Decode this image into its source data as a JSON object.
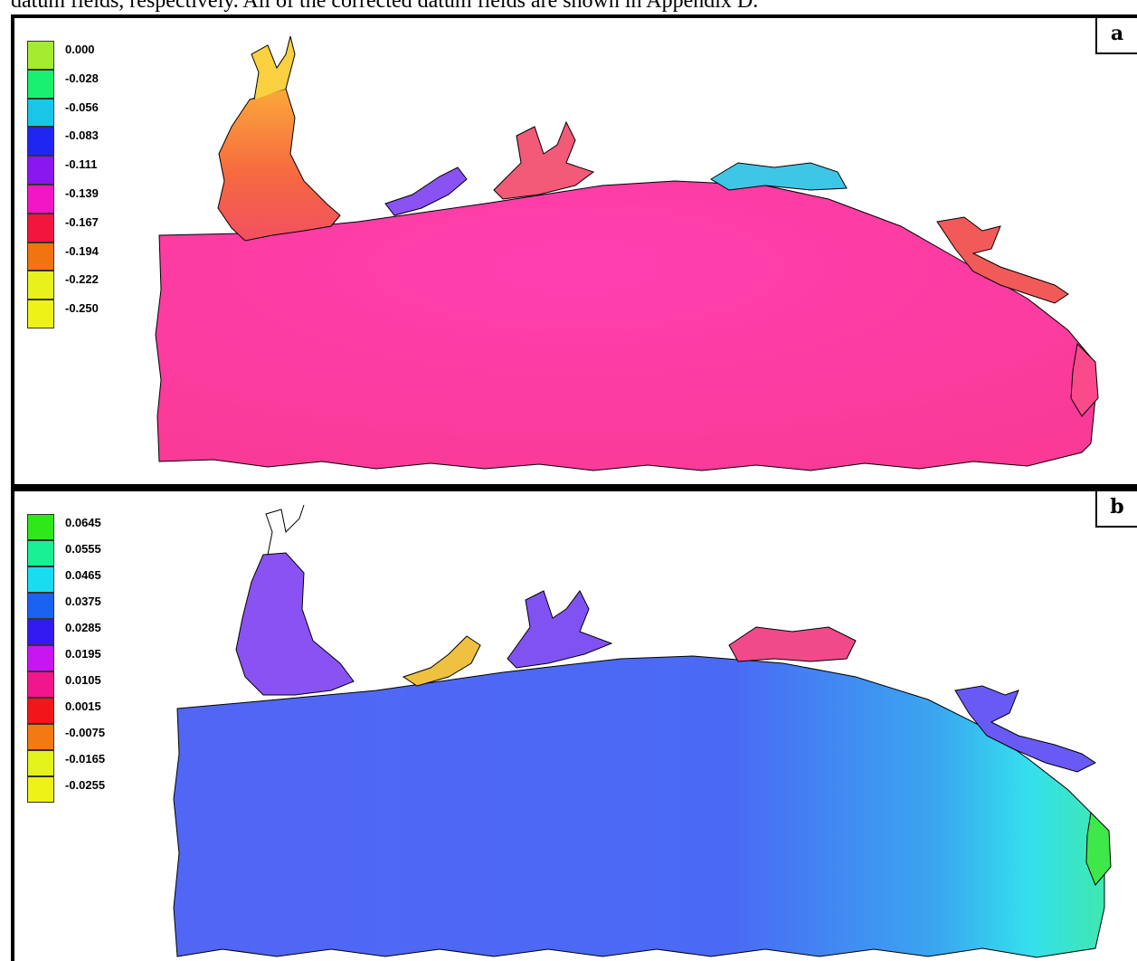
{
  "caption": "datum fields, respectively. All of the corrected datum fields are shown in Appendix D.",
  "panel_a": {
    "letter": "a",
    "legend": [
      {
        "label": "0.000",
        "color": "#a6ec2e"
      },
      {
        "label": "-0.028",
        "color": "#19f070"
      },
      {
        "label": "-0.056",
        "color": "#1ac6e8"
      },
      {
        "label": "-0.083",
        "color": "#1f26f2"
      },
      {
        "label": "-0.111",
        "color": "#8a16f0"
      },
      {
        "label": "-0.139",
        "color": "#f216c4"
      },
      {
        "label": "-0.167",
        "color": "#f2163c"
      },
      {
        "label": "-0.194",
        "color": "#f27410"
      },
      {
        "label": "-0.222",
        "color": "#e6f21a"
      },
      {
        "label": "-0.250",
        "color": "#eef216"
      }
    ]
  },
  "panel_b": {
    "letter": "b",
    "legend": [
      {
        "label": "0.0645",
        "color": "#2ee81a"
      },
      {
        "label": "0.0555",
        "color": "#19f094"
      },
      {
        "label": "0.0465",
        "color": "#19dcf0"
      },
      {
        "label": "0.0375",
        "color": "#1a63f2"
      },
      {
        "label": "0.0285",
        "color": "#3319f2"
      },
      {
        "label": "0.0195",
        "color": "#c816f2"
      },
      {
        "label": "0.0105",
        "color": "#f2168c"
      },
      {
        "label": "0.0015",
        "color": "#f2161a"
      },
      {
        "label": "-0.0075",
        "color": "#f27a10"
      },
      {
        "label": "-0.0165",
        "color": "#e2f21a"
      },
      {
        "label": "-0.0255",
        "color": "#eef216"
      }
    ]
  }
}
